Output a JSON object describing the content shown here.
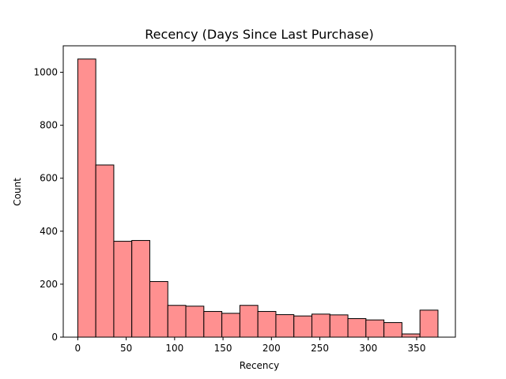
{
  "chart_data": {
    "type": "bar",
    "title": "Recency (Days Since Last Purchase)",
    "xlabel": "Recency",
    "ylabel": "Count",
    "xlim": [
      -15,
      390
    ],
    "ylim": [
      0,
      1100
    ],
    "xticks": [
      0,
      50,
      100,
      150,
      200,
      250,
      300,
      350
    ],
    "yticks": [
      0,
      200,
      400,
      600,
      800,
      1000
    ],
    "bin_edges": [
      0,
      18.6,
      37.2,
      55.8,
      74.4,
      93,
      111.6,
      130.2,
      148.8,
      167.4,
      186,
      204.6,
      223.2,
      241.8,
      260.4,
      279,
      297.6,
      316.2,
      334.8,
      353.4,
      372
    ],
    "values": [
      1050,
      650,
      362,
      365,
      210,
      120,
      117,
      97,
      90,
      120,
      97,
      85,
      80,
      87,
      84,
      70,
      65,
      55,
      12,
      102
    ],
    "bar_color": "#ff9090",
    "edge_color": "#000000",
    "grid": false
  }
}
